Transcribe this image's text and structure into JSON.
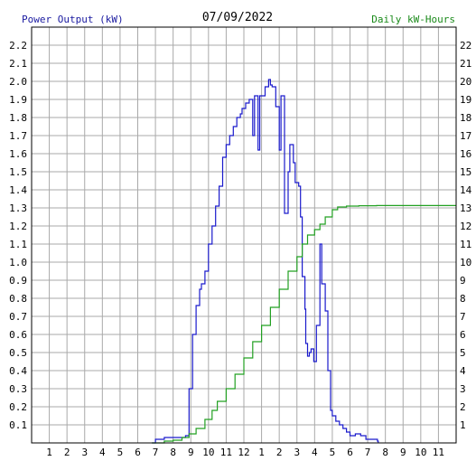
{
  "chart_data": {
    "type": "line",
    "title": "07/09/2022",
    "left_axis_label": "Power Output (kW)",
    "right_axis_label": "Daily kW-Hours",
    "x_tick_labels": [
      "1",
      "2",
      "3",
      "4",
      "5",
      "6",
      "7",
      "8",
      "9",
      "10",
      "11",
      "12",
      "1",
      "2",
      "3",
      "4",
      "5",
      "6",
      "7",
      "8",
      "9",
      "10",
      "11"
    ],
    "y_left_ticks": [
      "0.1",
      "0.2",
      "0.3",
      "0.4",
      "0.5",
      "0.6",
      "0.7",
      "0.8",
      "0.9",
      "1.0",
      "1.1",
      "1.2",
      "1.3",
      "1.4",
      "1.5",
      "1.6",
      "1.7",
      "1.8",
      "1.9",
      "2.0",
      "2.1",
      "2.2"
    ],
    "y_right_ticks": [
      "1",
      "2",
      "3",
      "4",
      "5",
      "6",
      "7",
      "8",
      "9",
      "10",
      "11",
      "12",
      "13",
      "14",
      "15",
      "16",
      "17",
      "18",
      "19",
      "20",
      "21",
      "22"
    ],
    "x_range_hours": [
      0,
      24
    ],
    "y_left_range": [
      0,
      2.3
    ],
    "y_right_range": [
      0,
      23
    ],
    "grid": true,
    "colors": {
      "grid": "#a9a9a9",
      "power_line": "#1a1acc",
      "energy_line": "#22a022",
      "left_label": "#1a1aa0",
      "right_label": "#1a8a1a"
    },
    "series": [
      {
        "axis": "left",
        "points": [
          [
            6.8,
            0.0
          ],
          [
            7.0,
            0.02
          ],
          [
            7.5,
            0.03
          ],
          [
            8.0,
            0.03
          ],
          [
            8.7,
            0.04
          ],
          [
            8.9,
            0.3
          ],
          [
            9.0,
            0.3
          ],
          [
            9.1,
            0.6
          ],
          [
            9.3,
            0.76
          ],
          [
            9.5,
            0.85
          ],
          [
            9.6,
            0.88
          ],
          [
            9.8,
            0.95
          ],
          [
            10.0,
            1.1
          ],
          [
            10.2,
            1.2
          ],
          [
            10.4,
            1.31
          ],
          [
            10.6,
            1.42
          ],
          [
            10.8,
            1.58
          ],
          [
            11.0,
            1.65
          ],
          [
            11.2,
            1.7
          ],
          [
            11.4,
            1.75
          ],
          [
            11.6,
            1.8
          ],
          [
            11.8,
            1.82
          ],
          [
            11.9,
            1.85
          ],
          [
            12.1,
            1.88
          ],
          [
            12.3,
            1.9
          ],
          [
            12.5,
            1.7
          ],
          [
            12.6,
            1.92
          ],
          [
            12.8,
            1.62
          ],
          [
            12.9,
            1.92
          ],
          [
            13.0,
            1.92
          ],
          [
            13.2,
            1.97
          ],
          [
            13.4,
            2.01
          ],
          [
            13.5,
            1.98
          ],
          [
            13.6,
            1.97
          ],
          [
            13.8,
            1.86
          ],
          [
            14.0,
            1.62
          ],
          [
            14.1,
            1.92
          ],
          [
            14.2,
            1.92
          ],
          [
            14.3,
            1.27
          ],
          [
            14.5,
            1.5
          ],
          [
            14.6,
            1.65
          ],
          [
            14.8,
            1.55
          ],
          [
            14.9,
            1.44
          ],
          [
            15.1,
            1.42
          ],
          [
            15.2,
            1.25
          ],
          [
            15.3,
            0.92
          ],
          [
            15.45,
            0.74
          ],
          [
            15.5,
            0.55
          ],
          [
            15.6,
            0.48
          ],
          [
            15.7,
            0.5
          ],
          [
            15.8,
            0.52
          ],
          [
            15.95,
            0.45
          ],
          [
            16.1,
            0.65
          ],
          [
            16.3,
            1.1
          ],
          [
            16.4,
            0.88
          ],
          [
            16.6,
            0.73
          ],
          [
            16.75,
            0.4
          ],
          [
            16.9,
            0.18
          ],
          [
            17.0,
            0.15
          ],
          [
            17.2,
            0.12
          ],
          [
            17.4,
            0.1
          ],
          [
            17.6,
            0.08
          ],
          [
            17.8,
            0.06
          ],
          [
            18.0,
            0.04
          ],
          [
            18.3,
            0.05
          ],
          [
            18.6,
            0.04
          ],
          [
            18.9,
            0.02
          ],
          [
            19.2,
            0.02
          ],
          [
            19.55,
            0.01
          ],
          [
            19.6,
            0.0
          ]
        ]
      },
      {
        "axis": "right",
        "points": [
          [
            6.8,
            0.0
          ],
          [
            7.5,
            0.1
          ],
          [
            8.0,
            0.15
          ],
          [
            8.5,
            0.3
          ],
          [
            8.9,
            0.5
          ],
          [
            9.3,
            0.8
          ],
          [
            9.8,
            1.3
          ],
          [
            10.2,
            1.8
          ],
          [
            10.5,
            2.3
          ],
          [
            11.0,
            3.0
          ],
          [
            11.5,
            3.8
          ],
          [
            12.0,
            4.7
          ],
          [
            12.5,
            5.6
          ],
          [
            13.0,
            6.5
          ],
          [
            13.5,
            7.5
          ],
          [
            14.0,
            8.5
          ],
          [
            14.5,
            9.5
          ],
          [
            15.0,
            10.3
          ],
          [
            15.3,
            11.0
          ],
          [
            15.6,
            11.5
          ],
          [
            16.0,
            11.8
          ],
          [
            16.3,
            12.1
          ],
          [
            16.6,
            12.5
          ],
          [
            17.0,
            12.9
          ],
          [
            17.3,
            13.05
          ],
          [
            17.8,
            13.1
          ],
          [
            18.5,
            13.12
          ],
          [
            19.5,
            13.13
          ],
          [
            22.0,
            13.13
          ],
          [
            24.0,
            13.13
          ]
        ]
      }
    ]
  }
}
